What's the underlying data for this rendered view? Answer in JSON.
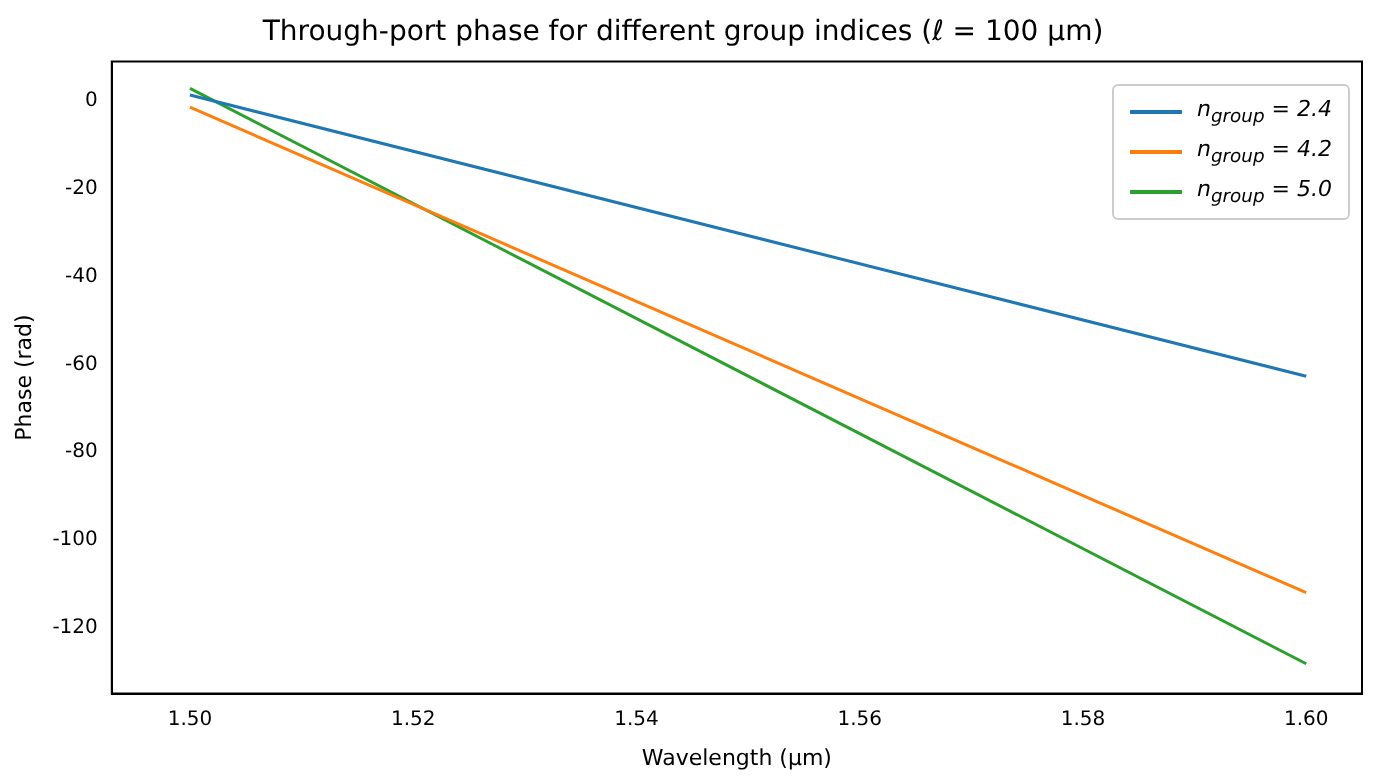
{
  "chart_data": {
    "type": "line",
    "title": "Through-port phase for different group indices (ℓ = 100 μm)",
    "xlabel": "Wavelength (μm)",
    "ylabel": "Phase (rad)",
    "xlim": [
      1.493,
      1.605
    ],
    "xticks": [
      {
        "value": 1.5,
        "label": "1.50"
      },
      {
        "value": 1.52,
        "label": "1.52"
      },
      {
        "value": 1.54,
        "label": "1.54"
      },
      {
        "value": 1.56,
        "label": "1.56"
      },
      {
        "value": 1.58,
        "label": "1.58"
      },
      {
        "value": 1.6,
        "label": "1.60"
      }
    ],
    "ylim": [
      -135,
      9
    ],
    "yticks": [
      -120,
      -100,
      -80,
      -60,
      -40,
      -20,
      0
    ],
    "x": [
      1.5,
      1.6
    ],
    "grid": false,
    "legend": "top right",
    "marker": "none",
    "line_style": "solid",
    "series": [
      {
        "name": "n$_{group}$ = 2.4",
        "color": "#1f77b4",
        "values": [
          1.4,
          -62.7
        ]
      },
      {
        "name": "n$_{group}$ = 4.2",
        "color": "#ff7f0e",
        "values": [
          -1.4,
          -112
        ]
      },
      {
        "name": "n$_{group}$ = 5.0",
        "color": "#2ca02c",
        "values": [
          2.9,
          -128.2
        ]
      }
    ]
  }
}
